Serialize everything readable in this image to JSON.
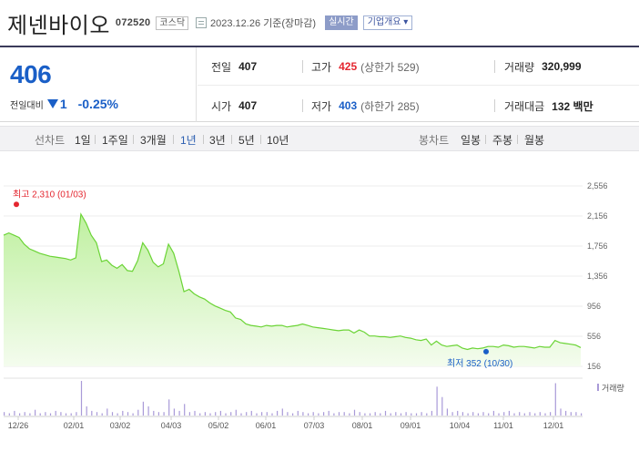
{
  "header": {
    "name": "제넨바이오",
    "code": "072520",
    "market": "코스닥",
    "date": "2023.12.26 기준(장마감)",
    "realtime": "실시간",
    "company_info": "기업개요"
  },
  "price": {
    "current": "406",
    "change_label": "전일대비",
    "change_amount": "1",
    "change_pct": "-0.25%"
  },
  "stats": {
    "prev_label": "전일",
    "prev_value": "407",
    "high_label": "고가",
    "high_value": "425",
    "upper_limit": "(상한가 529)",
    "volume_label": "거래량",
    "volume_value": "320,999",
    "open_label": "시가",
    "open_value": "407",
    "low_label": "저가",
    "low_value": "403",
    "lower_limit": "(하한가 285)",
    "amount_label": "거래대금",
    "amount_value": "132 백만"
  },
  "period_bar": {
    "line_label": "선차트",
    "periods": [
      "1일",
      "1주일",
      "3개월",
      "1년",
      "3년",
      "5년",
      "10년"
    ],
    "selected": "1년",
    "candle_label": "봉차트",
    "candles": [
      "일봉",
      "주봉",
      "월봉"
    ]
  },
  "colors": {
    "line": "#6bd436",
    "fill_top": "#bff0a0",
    "fill_bottom": "#f4fcee",
    "up": "#e4262f",
    "down": "#1a5fc7",
    "volume": "#a99ad8"
  },
  "chart_data": {
    "type": "area",
    "y_ticks": [
      "2,556",
      "2,156",
      "1,756",
      "1,356",
      "956",
      "556",
      "156"
    ],
    "ylim": [
      156,
      2556
    ],
    "x_ticks": [
      "12/26",
      "02/01",
      "03/02",
      "04/03",
      "05/02",
      "06/01",
      "07/03",
      "08/01",
      "09/01",
      "10/04",
      "11/01",
      "12/01"
    ],
    "series": [
      {
        "values": [
          1900,
          1930,
          1900,
          1870,
          1780,
          1720,
          1690,
          1660,
          1640,
          1620,
          1610,
          1600,
          1590,
          1570,
          1600,
          2180,
          2060,
          1900,
          1800,
          1550,
          1570,
          1500,
          1460,
          1510,
          1430,
          1420,
          1560,
          1800,
          1700,
          1540,
          1480,
          1520,
          1780,
          1660,
          1420,
          1150,
          1180,
          1120,
          1080,
          1050,
          1000,
          960,
          930,
          900,
          880,
          800,
          780,
          720,
          700,
          690,
          680,
          700,
          690,
          700,
          700,
          680,
          690,
          700,
          720,
          700,
          680,
          670,
          660,
          650,
          640,
          630,
          640,
          640,
          600,
          640,
          610,
          560,
          560,
          550,
          550,
          540,
          550,
          560,
          540,
          530,
          510,
          500,
          520,
          440,
          490,
          440,
          420,
          430,
          440,
          400,
          380,
          400,
          390,
          400,
          420,
          420,
          410,
          440,
          430,
          410,
          420,
          420,
          410,
          400,
          420,
          410,
          410,
          500,
          470,
          460,
          450,
          440,
          406
        ]
      }
    ],
    "high_annotation": "최고 2,310 (01/03)",
    "low_annotation": "최저 352 (10/30)",
    "high_value": 2310,
    "low_value": 352,
    "volume_label": "거래량",
    "volume": [
      3,
      2,
      4,
      2,
      3,
      2,
      5,
      2,
      3,
      2,
      4,
      3,
      2,
      2,
      3,
      30,
      8,
      4,
      3,
      2,
      6,
      3,
      2,
      4,
      3,
      2,
      5,
      12,
      8,
      4,
      3,
      3,
      14,
      6,
      4,
      10,
      3,
      4,
      2,
      3,
      2,
      3,
      4,
      2,
      3,
      5,
      2,
      3,
      4,
      2,
      3,
      3,
      2,
      4,
      6,
      3,
      2,
      4,
      3,
      2,
      3,
      2,
      3,
      4,
      2,
      3,
      3,
      2,
      5,
      3,
      2,
      2,
      3,
      2,
      4,
      2,
      3,
      2,
      3,
      2,
      2,
      3,
      2,
      4,
      25,
      16,
      6,
      3,
      4,
      3,
      2,
      3,
      2,
      3,
      2,
      4,
      2,
      3,
      4,
      2,
      3,
      2,
      3,
      2,
      3,
      2,
      3,
      28,
      6,
      4,
      3,
      3,
      2
    ]
  }
}
